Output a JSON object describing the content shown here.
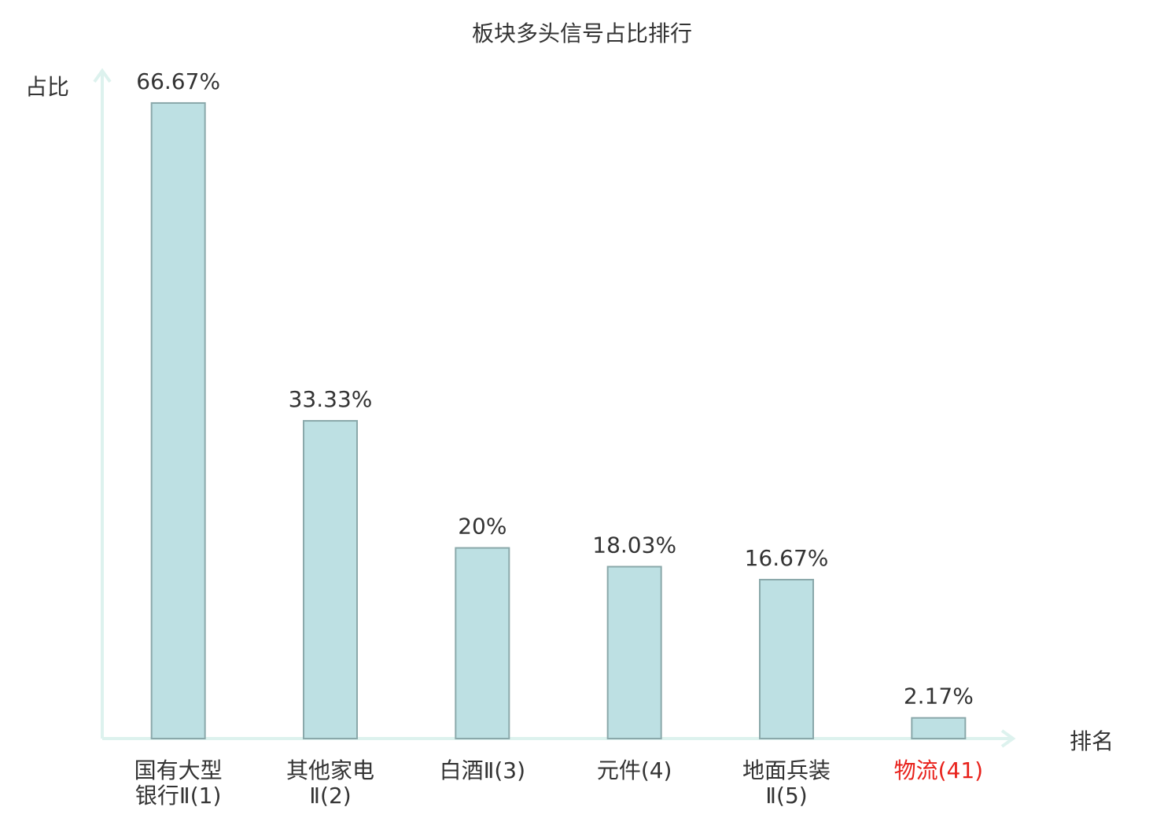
{
  "chart_data": {
    "type": "bar",
    "title": "板块多头信号占比排行",
    "y_label": "占比",
    "x_label": "排名",
    "categories": [
      "国有大型银行Ⅱ(1)",
      "其他家电Ⅱ(2)",
      "白酒Ⅱ(3)",
      "元件(4)",
      "地面兵装Ⅱ(5)",
      "物流(41)"
    ],
    "values": [
      66.67,
      33.33,
      20,
      18.03,
      16.67,
      2.17
    ],
    "value_labels": [
      "66.67%",
      "33.33%",
      "20%",
      "18.03%",
      "16.67%",
      "2.17%"
    ],
    "color": "#bde0e3",
    "edge_color": "#8aa8aa",
    "highlight": {
      "index": 5,
      "color": "#e8211b"
    },
    "ylim": [
      0,
      70
    ]
  }
}
